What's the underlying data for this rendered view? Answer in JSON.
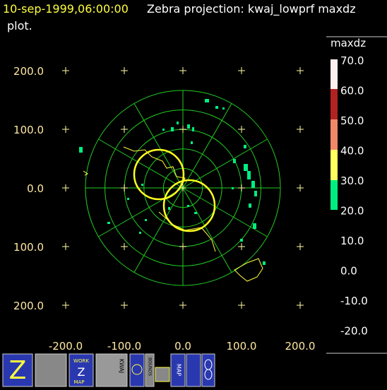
{
  "header": {
    "timestamp": "10-sep-1999,06:00:00",
    "title": "Zebra projection: kwaj_lowprf maxdz",
    "title_cont": "plot."
  },
  "plot": {
    "y_labels": [
      "200.0",
      "100.0",
      "0.0",
      "100.0",
      "200.0"
    ],
    "x_labels": [
      "-200.0",
      "-100.0",
      "0.0",
      "100.0",
      "200.0"
    ]
  },
  "colorbar": {
    "field": "maxdz",
    "labels": [
      "70.0",
      "60.0",
      "50.0",
      "40.0",
      "30.0",
      "20.0",
      "10.0",
      "0.0",
      "-10.0",
      "-20.0"
    ]
  },
  "toolbar": {
    "work": "WORK",
    "z": "Z",
    "map1": "MAP",
    "kwaj": "KWAJ",
    "bounds": "BOUNDS",
    "map2": "MAP"
  }
}
